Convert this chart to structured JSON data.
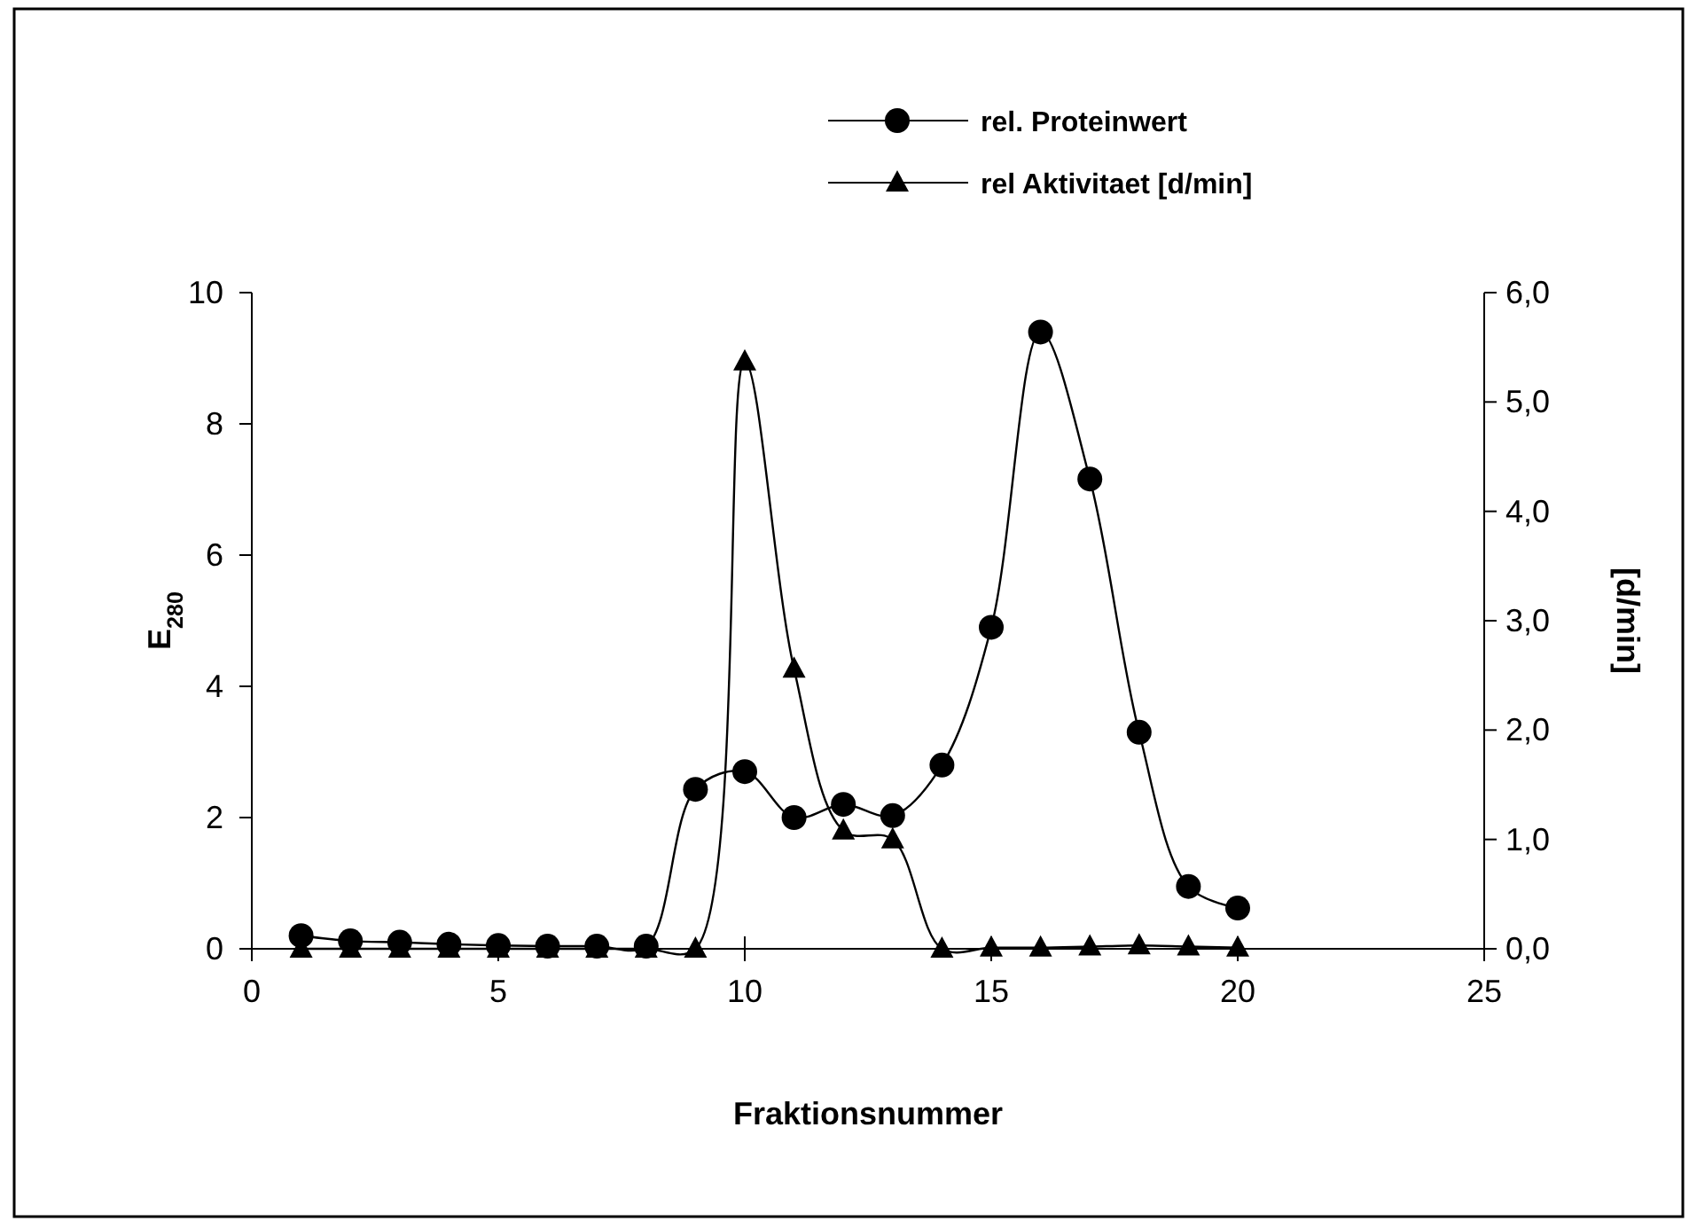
{
  "chart_data": {
    "type": "line",
    "xlabel": "Fraktionsnummer",
    "ylabel": "E$_{280}$",
    "y2label": "[d/min]",
    "x": [
      1,
      2,
      3,
      4,
      5,
      6,
      7,
      8,
      9,
      10,
      11,
      12,
      13,
      14,
      15,
      16,
      17,
      18,
      19,
      20
    ],
    "series": [
      {
        "name": "rel. Proteinwert",
        "color": "#000000",
        "marker": "circle",
        "values": [
          0.2,
          0.12,
          0.1,
          0.07,
          0.05,
          0.04,
          0.04,
          0.04,
          2.43,
          2.7,
          2.0,
          2.2,
          2.03,
          2.8,
          4.9,
          9.4,
          7.16,
          3.3,
          0.95,
          0.62
        ]
      },
      {
        "name": "rel Aktivitaet [d/min]",
        "color": "#000000",
        "marker": "triangle",
        "axis": "y2",
        "values": [
          0,
          0,
          0,
          0,
          0,
          0,
          0,
          0,
          0,
          5.37,
          2.56,
          1.08,
          1.0,
          0,
          0.01,
          0.01,
          0.02,
          0.03,
          0.02,
          0.01
        ]
      }
    ],
    "xlim": [
      0,
      25
    ],
    "xticks": [
      0,
      5,
      10,
      15,
      20,
      25
    ],
    "ylim": [
      0,
      10
    ],
    "yticks": [
      0,
      2,
      4,
      6,
      8,
      10
    ],
    "y2lim": [
      0,
      6
    ],
    "y2ticks": [
      {
        "value": 0,
        "label": "0,0"
      },
      {
        "value": 1,
        "label": "1,0"
      },
      {
        "value": 2,
        "label": "2,0"
      },
      {
        "value": 3,
        "label": "3,0"
      },
      {
        "value": 4,
        "label": "4,0"
      },
      {
        "value": 5,
        "label": "5,0"
      },
      {
        "value": 6,
        "label": "6,0"
      }
    ],
    "grid": false,
    "legend": "top",
    "line_style": "solid"
  }
}
